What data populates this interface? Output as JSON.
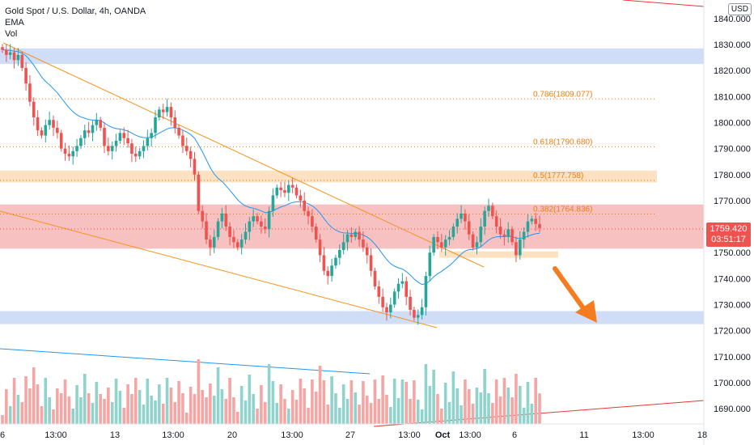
{
  "legend": {
    "title": "Gold Spot / U.S. Dollar, 4h, OANDA",
    "ema": "EMA",
    "vol": "Vol"
  },
  "currency_badge": "USD",
  "last_price": {
    "price": "1759.420",
    "countdown": "03:51:17"
  },
  "colors": {
    "up": "#26a69a",
    "down": "#ef5350",
    "vol_up": "#8fd3cc",
    "vol_down": "#f5a5a3",
    "ema": "#2196f3",
    "fib": "#ef7d0d",
    "blue_zone": "#c7d8f5",
    "red_zone": "#f6b6b6",
    "orange_zone": "#fcdcb9",
    "channel": "#f7931a",
    "arrow": "#f57c1f",
    "red_line": "#e53935"
  },
  "chart_data": {
    "type": "candlestick",
    "symbol": "Gold Spot / U.S. Dollar, 4h, OANDA",
    "ylim": [
      1685,
      1845
    ],
    "y_ticks": [
      1840,
      1830,
      1820,
      1810,
      1800,
      1790,
      1780,
      1770,
      1760,
      1750,
      1740,
      1730,
      1720,
      1710,
      1700,
      1690
    ],
    "y_tick_labels": [
      "1840.000",
      "1830.000",
      "1820.000",
      "1810.000",
      "1800.000",
      "1790.000",
      "1780.000",
      "1770.000",
      "1760.000",
      "1750.000",
      "1740.000",
      "1730.000",
      "1720.000",
      "1710.000",
      "1700.000",
      "1690.000"
    ],
    "x_tick_labels": [
      "6",
      "13:00",
      "13",
      "13:00",
      "20",
      "13:00",
      "27",
      "13:00",
      "Oct",
      "13:00",
      "6",
      "11",
      "13:00",
      "18"
    ],
    "fib_levels": [
      {
        "label": "0.786(1809.077)",
        "value": 1809.077
      },
      {
        "label": "0.618(1790.680)",
        "value": 1790.68
      },
      {
        "label": "0.5(1777.758)",
        "value": 1777.758
      },
      {
        "label": "0.382(1764.836)",
        "value": 1764.836
      }
    ],
    "zones": [
      {
        "kind": "blue",
        "from": 1822.5,
        "to": 1828.5
      },
      {
        "kind": "orange",
        "from": 1777.0,
        "to": 1781.5
      },
      {
        "kind": "red",
        "from": 1751.5,
        "to": 1768.5
      },
      {
        "kind": "orange",
        "from": 1748.0,
        "to": 1750.5
      },
      {
        "kind": "blue",
        "from": 1722.5,
        "to": 1727.5
      }
    ],
    "closes": [
      1828,
      1826,
      1827,
      1824,
      1826,
      1821,
      1815,
      1808,
      1802,
      1797,
      1795,
      1799,
      1801,
      1798,
      1796,
      1790,
      1788,
      1787,
      1789,
      1791,
      1794,
      1797,
      1796,
      1799,
      1801,
      1798,
      1791,
      1789,
      1791,
      1793,
      1796,
      1794,
      1792,
      1788,
      1787,
      1789,
      1791,
      1794,
      1796,
      1802,
      1805,
      1804,
      1806,
      1802,
      1798,
      1795,
      1791,
      1789,
      1786,
      1780,
      1766,
      1762,
      1755,
      1752,
      1756,
      1762,
      1765,
      1760,
      1756,
      1754,
      1752,
      1755,
      1758,
      1762,
      1764,
      1762,
      1760,
      1759,
      1766,
      1772,
      1775,
      1774,
      1773,
      1776,
      1775,
      1772,
      1770,
      1766,
      1764,
      1760,
      1755,
      1749,
      1743,
      1741,
      1745,
      1748,
      1751,
      1754,
      1757,
      1756,
      1758,
      1755,
      1752,
      1749,
      1743,
      1737,
      1733,
      1729,
      1727,
      1730,
      1735,
      1738,
      1739,
      1733,
      1728,
      1725,
      1726,
      1729,
      1741,
      1750,
      1756,
      1754,
      1752,
      1755,
      1756,
      1760,
      1763,
      1765,
      1762,
      1757,
      1752,
      1754,
      1760,
      1766,
      1768,
      1764,
      1760,
      1757,
      1756,
      1759,
      1754,
      1749,
      1755,
      1758,
      1762,
      1763,
      1761,
      1759.42
    ]
  }
}
